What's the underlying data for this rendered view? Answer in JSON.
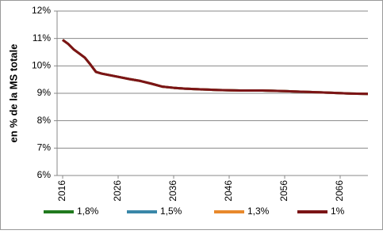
{
  "chart_data": {
    "type": "line",
    "y_label": "en % de la MS totale",
    "x": [
      2016,
      2017,
      2018,
      2019,
      2020,
      2021,
      2022,
      2023,
      2024,
      2026,
      2028,
      2030,
      2032,
      2034,
      2036,
      2038,
      2040,
      2044,
      2048,
      2052,
      2056,
      2060,
      2064,
      2068,
      2071
    ],
    "series": [
      {
        "name": "1,8%",
        "color": "#217a1e",
        "values": [
          10.95,
          10.8,
          10.6,
          10.45,
          10.3,
          10.05,
          9.78,
          9.72,
          9.68,
          9.6,
          9.52,
          9.45,
          9.35,
          9.24,
          9.2,
          9.17,
          9.15,
          9.12,
          9.1,
          9.1,
          9.08,
          9.05,
          9.02,
          8.99,
          8.98
        ]
      },
      {
        "name": "1,5%",
        "color": "#3a87a8",
        "values": [
          10.95,
          10.8,
          10.6,
          10.45,
          10.3,
          10.05,
          9.78,
          9.72,
          9.68,
          9.6,
          9.52,
          9.45,
          9.35,
          9.24,
          9.2,
          9.17,
          9.15,
          9.12,
          9.1,
          9.1,
          9.08,
          9.05,
          9.02,
          8.99,
          8.98
        ]
      },
      {
        "name": "1,3%",
        "color": "#e8892c",
        "values": [
          10.95,
          10.8,
          10.6,
          10.45,
          10.3,
          10.05,
          9.78,
          9.72,
          9.68,
          9.6,
          9.52,
          9.45,
          9.35,
          9.24,
          9.2,
          9.17,
          9.15,
          9.12,
          9.1,
          9.1,
          9.08,
          9.05,
          9.02,
          8.99,
          8.98
        ]
      },
      {
        "name": "1%",
        "color": "#7b1416",
        "values": [
          10.95,
          10.8,
          10.6,
          10.45,
          10.3,
          10.05,
          9.78,
          9.72,
          9.68,
          9.6,
          9.52,
          9.45,
          9.35,
          9.24,
          9.2,
          9.17,
          9.15,
          9.12,
          9.1,
          9.1,
          9.08,
          9.05,
          9.02,
          8.99,
          8.98
        ]
      }
    ],
    "xlim": [
      2015,
      2071
    ],
    "xticks": [
      2016,
      2026,
      2036,
      2046,
      2056,
      2066
    ],
    "ylim": [
      6,
      12
    ],
    "yticks": [
      {
        "value": 6,
        "label": "6%"
      },
      {
        "value": 7,
        "label": "7%"
      },
      {
        "value": 8,
        "label": "8%"
      },
      {
        "value": 9,
        "label": "9%"
      },
      {
        "value": 10,
        "label": "10%"
      },
      {
        "value": 11,
        "label": "11%"
      },
      {
        "value": 12,
        "label": "12%"
      }
    ],
    "grid": true
  }
}
